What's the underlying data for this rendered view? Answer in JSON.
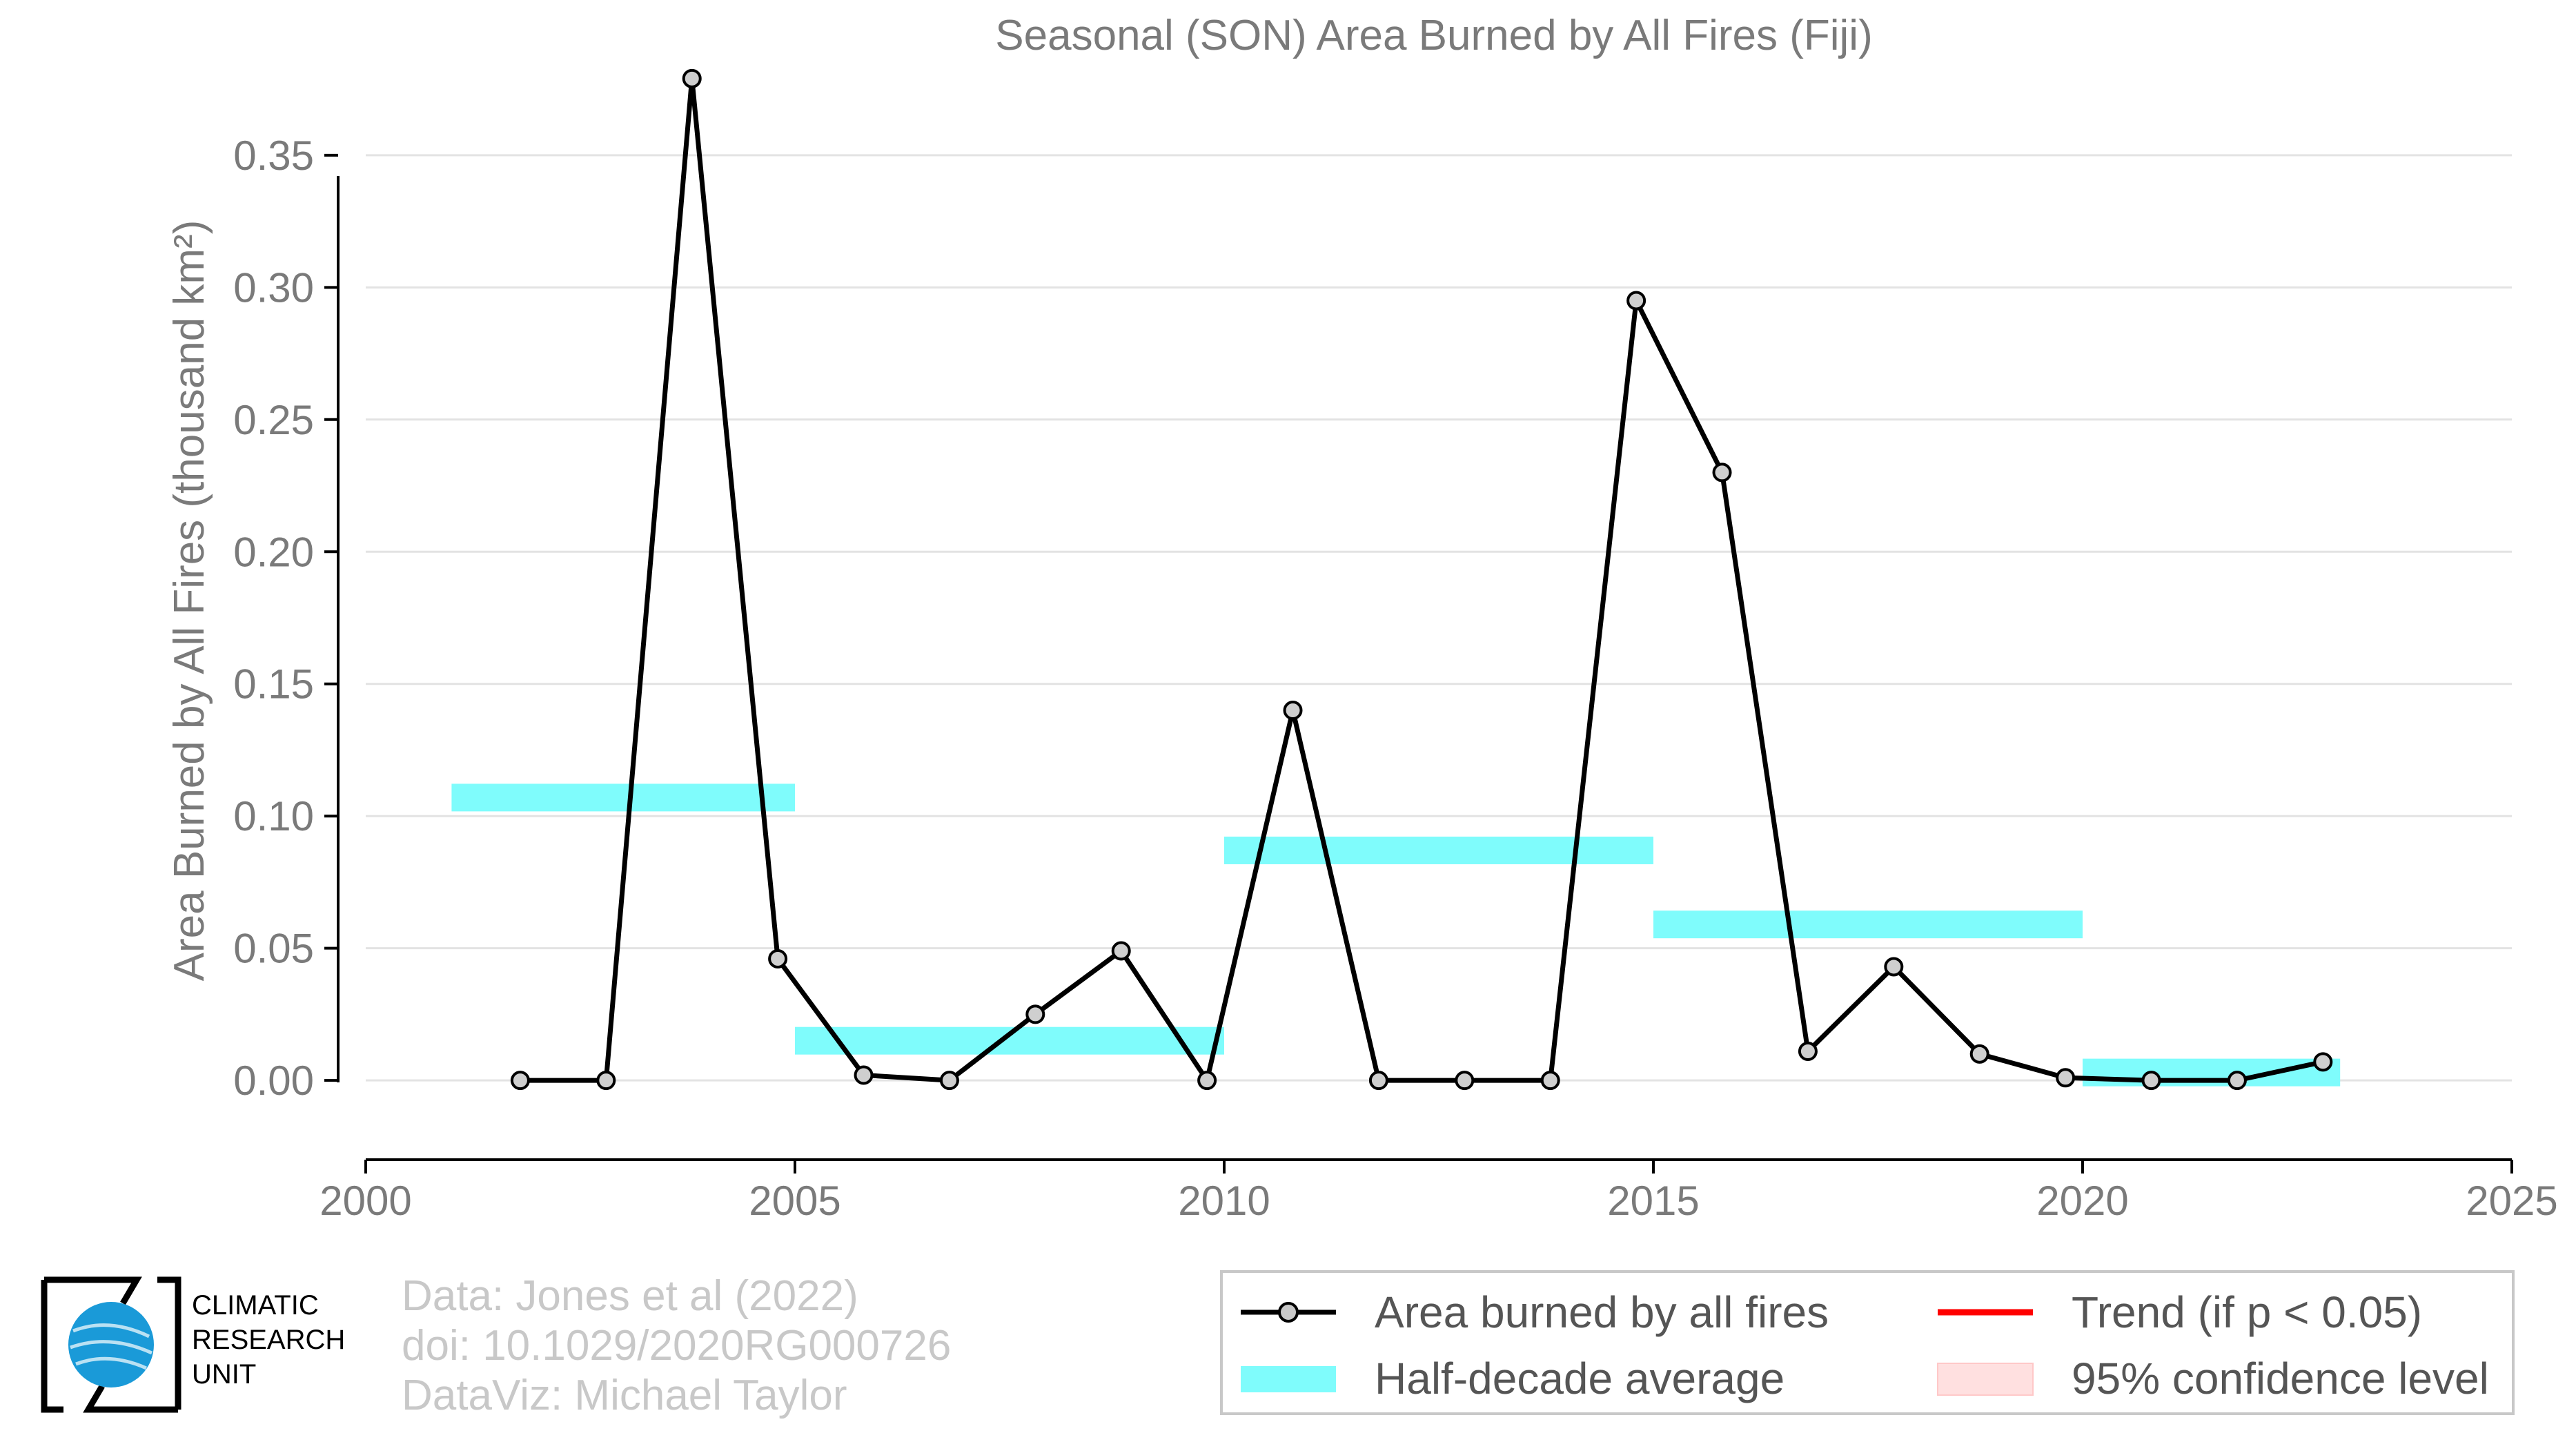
{
  "chart_data": {
    "type": "line",
    "title": "Seasonal (SON) Area Burned by All Fires (Fiji)",
    "ylabel": "Area Burned by All Fires (thousand km²)",
    "xlabel": "",
    "xlim": [
      2000,
      2025
    ],
    "ylim": [
      -0.03,
      0.38
    ],
    "x_ticks": [
      2000,
      2005,
      2010,
      2015,
      2020,
      2025
    ],
    "y_ticks": [
      0.0,
      0.05,
      0.1,
      0.15,
      0.2,
      0.25,
      0.3,
      0.35
    ],
    "y_tick_labels": [
      "0.00",
      "0.05",
      "0.10",
      "0.15",
      "0.20",
      "0.25",
      "0.30",
      "0.35"
    ],
    "grid": "horizontal",
    "series": [
      {
        "name": "Area burned by all fires",
        "color": "#000000",
        "x": [
          2001.8,
          2002.8,
          2003.8,
          2004.8,
          2005.8,
          2006.8,
          2007.8,
          2008.8,
          2009.8,
          2010.8,
          2011.8,
          2012.8,
          2013.8,
          2014.8,
          2015.8,
          2016.8,
          2017.8,
          2018.8,
          2019.8,
          2020.8,
          2021.8,
          2022.8
        ],
        "y": [
          0.0,
          0.0,
          0.379,
          0.046,
          0.002,
          0.0,
          0.025,
          0.049,
          0.0,
          0.14,
          0.0,
          0.0,
          0.0,
          0.295,
          0.23,
          0.011,
          0.043,
          0.01,
          0.001,
          0.0,
          0.0,
          0.007
        ]
      }
    ],
    "half_decade_average": {
      "name": "Half-decade average",
      "color": "#7ffcfc",
      "segments": [
        {
          "x0": 2001,
          "x1": 2005,
          "y": 0.107
        },
        {
          "x0": 2005,
          "x1": 2010,
          "y": 0.015
        },
        {
          "x0": 2010,
          "x1": 2015,
          "y": 0.087
        },
        {
          "x0": 2015,
          "x1": 2020,
          "y": 0.059
        },
        {
          "x0": 2020,
          "x1": 2023,
          "y": 0.003
        }
      ]
    },
    "legend": {
      "placement": "bottom-right",
      "entries": [
        {
          "label": "Area burned by all fires",
          "color": "#000000"
        },
        {
          "label": "Trend (if p < 0.05)",
          "color": "#ff0000"
        },
        {
          "label": "Half-decade average",
          "color": "#7ffcfc"
        },
        {
          "label": "95% confidence level",
          "color": "#ffe0e0"
        }
      ]
    }
  },
  "credits": {
    "line1": "Data: Jones et al (2022)",
    "line2": "doi: 10.1029/2020RG000726",
    "line3": "DataViz: Michael Taylor"
  },
  "logo": {
    "line1": "CLIMATIC",
    "line2": "RESEARCH",
    "line3": "UNIT"
  }
}
